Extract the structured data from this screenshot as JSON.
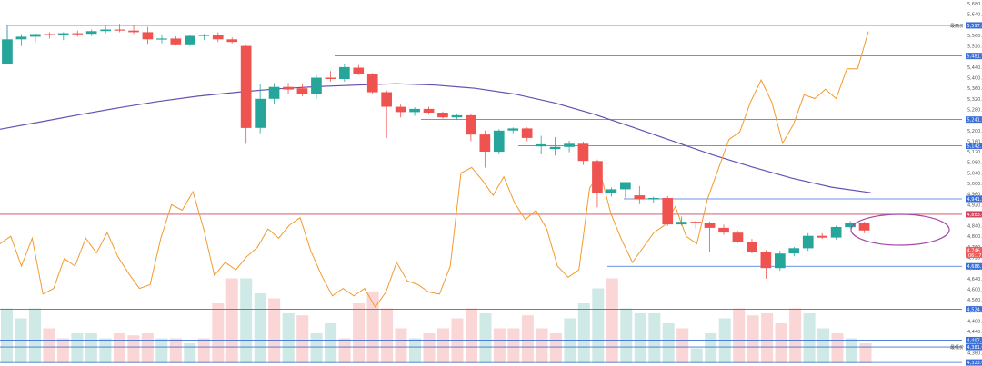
{
  "chart_data": {
    "type": "candlestick",
    "price_axis": {
      "ylim": [
        4320,
        5680
      ],
      "ticks": [
        "5,680.00",
        "5,640.00",
        "5,600.00",
        "5,560.00",
        "5,520.00",
        "5,480.00",
        "5,440.00",
        "5,400.00",
        "5,360.00",
        "5,320.00",
        "5,280.00",
        "5,240.00",
        "5,200.00",
        "5,160.00",
        "5,120.00",
        "5,080.00",
        "5,040.00",
        "5,000.00",
        "4,960.00",
        "4,920.00",
        "4,880.00",
        "4,840.00",
        "4,800.00",
        "4,760.00",
        "4,720.00",
        "4,680.00",
        "4,640.00",
        "4,600.00",
        "4,560.00",
        "4,520.00",
        "4,480.00",
        "4,440.00",
        "4,400.00",
        "4,360.00",
        "4,320.00"
      ]
    },
    "candles": [
      {
        "o": 5450,
        "h": 5580,
        "l": 5450,
        "c": 5545
      },
      {
        "o": 5545,
        "h": 5565,
        "l": 5520,
        "c": 5555
      },
      {
        "o": 5555,
        "h": 5568,
        "l": 5535,
        "c": 5565
      },
      {
        "o": 5565,
        "h": 5572,
        "l": 5548,
        "c": 5560
      },
      {
        "o": 5560,
        "h": 5572,
        "l": 5542,
        "c": 5568
      },
      {
        "o": 5568,
        "h": 5578,
        "l": 5555,
        "c": 5566
      },
      {
        "o": 5566,
        "h": 5582,
        "l": 5558,
        "c": 5576
      },
      {
        "o": 5576,
        "h": 5600,
        "l": 5568,
        "c": 5582
      },
      {
        "o": 5582,
        "h": 5604,
        "l": 5572,
        "c": 5578
      },
      {
        "o": 5578,
        "h": 5598,
        "l": 5566,
        "c": 5572
      },
      {
        "o": 5572,
        "h": 5592,
        "l": 5528,
        "c": 5545
      },
      {
        "o": 5545,
        "h": 5562,
        "l": 5530,
        "c": 5548
      },
      {
        "o": 5548,
        "h": 5556,
        "l": 5521,
        "c": 5526
      },
      {
        "o": 5526,
        "h": 5562,
        "l": 5520,
        "c": 5558
      },
      {
        "o": 5558,
        "h": 5566,
        "l": 5542,
        "c": 5562
      },
      {
        "o": 5562,
        "h": 5572,
        "l": 5535,
        "c": 5545
      },
      {
        "o": 5545,
        "h": 5552,
        "l": 5530,
        "c": 5535
      },
      {
        "o": 5520,
        "h": 5522,
        "l": 5150,
        "c": 5210
      },
      {
        "o": 5210,
        "h": 5375,
        "l": 5190,
        "c": 5320
      },
      {
        "o": 5320,
        "h": 5380,
        "l": 5300,
        "c": 5365
      },
      {
        "o": 5365,
        "h": 5380,
        "l": 5340,
        "c": 5355
      },
      {
        "o": 5360,
        "h": 5378,
        "l": 5330,
        "c": 5340
      },
      {
        "o": 5340,
        "h": 5410,
        "l": 5320,
        "c": 5400
      },
      {
        "o": 5400,
        "h": 5425,
        "l": 5385,
        "c": 5395
      },
      {
        "o": 5395,
        "h": 5450,
        "l": 5385,
        "c": 5440
      },
      {
        "o": 5438,
        "h": 5448,
        "l": 5410,
        "c": 5415
      },
      {
        "o": 5415,
        "h": 5418,
        "l": 5338,
        "c": 5345
      },
      {
        "o": 5345,
        "h": 5352,
        "l": 5172,
        "c": 5290
      },
      {
        "o": 5290,
        "h": 5298,
        "l": 5250,
        "c": 5270
      },
      {
        "o": 5270,
        "h": 5288,
        "l": 5256,
        "c": 5282
      },
      {
        "o": 5282,
        "h": 5290,
        "l": 5260,
        "c": 5268
      },
      {
        "o": 5268,
        "h": 5272,
        "l": 5245,
        "c": 5250
      },
      {
        "o": 5250,
        "h": 5262,
        "l": 5240,
        "c": 5258
      },
      {
        "o": 5258,
        "h": 5265,
        "l": 5160,
        "c": 5185
      },
      {
        "o": 5185,
        "h": 5200,
        "l": 5060,
        "c": 5120
      },
      {
        "o": 5120,
        "h": 5205,
        "l": 5110,
        "c": 5200
      },
      {
        "o": 5200,
        "h": 5212,
        "l": 5190,
        "c": 5208
      },
      {
        "o": 5208,
        "h": 5212,
        "l": 5160,
        "c": 5172
      },
      {
        "o": 5140,
        "h": 5180,
        "l": 5110,
        "c": 5148
      },
      {
        "o": 5130,
        "h": 5175,
        "l": 5105,
        "c": 5138
      },
      {
        "o": 5138,
        "h": 5162,
        "l": 5118,
        "c": 5150
      },
      {
        "o": 5150,
        "h": 5158,
        "l": 5070,
        "c": 5085
      },
      {
        "o": 5085,
        "h": 5090,
        "l": 4910,
        "c": 4965
      },
      {
        "o": 4965,
        "h": 4985,
        "l": 4950,
        "c": 4978
      },
      {
        "o": 4978,
        "h": 5000,
        "l": 4945,
        "c": 5005
      },
      {
        "o": 4955,
        "h": 4990,
        "l": 4922,
        "c": 4940
      },
      {
        "o": 4940,
        "h": 4950,
        "l": 4928,
        "c": 4945
      },
      {
        "o": 4945,
        "h": 4952,
        "l": 4840,
        "c": 4845
      },
      {
        "o": 4845,
        "h": 4875,
        "l": 4840,
        "c": 4855
      },
      {
        "o": 4855,
        "h": 4860,
        "l": 4830,
        "c": 4850
      },
      {
        "o": 4850,
        "h": 4856,
        "l": 4740,
        "c": 4832
      },
      {
        "o": 4832,
        "h": 4844,
        "l": 4806,
        "c": 4814
      },
      {
        "o": 4814,
        "h": 4820,
        "l": 4775,
        "c": 4778
      },
      {
        "o": 4778,
        "h": 4790,
        "l": 4735,
        "c": 4740
      },
      {
        "o": 4740,
        "h": 4748,
        "l": 4640,
        "c": 4680
      },
      {
        "o": 4680,
        "h": 4745,
        "l": 4670,
        "c": 4735
      },
      {
        "o": 4735,
        "h": 4760,
        "l": 4725,
        "c": 4755
      },
      {
        "o": 4755,
        "h": 4812,
        "l": 4745,
        "c": 4802
      },
      {
        "o": 4802,
        "h": 4812,
        "l": 4790,
        "c": 4795
      },
      {
        "o": 4795,
        "h": 4840,
        "l": 4788,
        "c": 4835
      },
      {
        "o": 4835,
        "h": 4858,
        "l": 4830,
        "c": 4852
      },
      {
        "o": 4852,
        "h": 4855,
        "l": 4812,
        "c": 4822
      }
    ],
    "moving_average": [
      5205,
      5232,
      5260,
      5286,
      5310,
      5330,
      5345,
      5358,
      5366,
      5372,
      5377,
      5372,
      5360,
      5338,
      5305,
      5262,
      5212,
      5160,
      5108,
      5062,
      5020,
      4986,
      4965
    ],
    "oscillator": [
      52,
      56,
      40,
      55,
      25,
      28,
      44,
      40,
      55,
      47,
      58,
      45,
      36,
      28,
      30,
      55,
      73,
      70,
      80,
      60,
      35,
      42,
      38,
      45,
      50,
      60,
      55,
      62,
      66,
      48,
      35,
      24,
      28,
      24,
      28,
      18,
      26,
      42,
      32,
      30,
      26,
      25,
      40,
      90,
      93,
      86,
      78,
      88,
      74,
      65,
      70,
      60,
      40,
      34,
      38,
      82,
      90,
      68,
      54,
      42,
      50,
      58,
      62,
      72,
      56,
      52,
      76,
      92,
      108,
      112,
      128,
      140,
      128,
      106,
      116,
      132,
      130,
      135,
      130,
      146,
      146,
      166
    ]
  },
  "price_lines": [
    {
      "label": "5,597.84",
      "value": 5597.84,
      "color": "#3b6fd6",
      "side_label": "最高价"
    },
    {
      "label": "5,481.97",
      "value": 5481.97,
      "color": "#3b6fd6"
    },
    {
      "label": "5,241.58",
      "value": 5241.58,
      "color": "#3b6fd6"
    },
    {
      "label": "5,142.17",
      "value": 5142.17,
      "color": "#3b6fd6"
    },
    {
      "label": "4,941.56",
      "value": 4941.56,
      "color": "#3b6fd6"
    },
    {
      "label": "4,883.49",
      "value": 4883.49,
      "color": "#d0455b"
    },
    {
      "label": "4,686.72",
      "value": 4686.72,
      "color": "#3b6fd6"
    },
    {
      "label": "4,524.12",
      "value": 4524.12,
      "color": "#3b6fd6"
    },
    {
      "label": "4,407.77",
      "value": 4407.77,
      "color": "#3b6fd6"
    },
    {
      "label": "4,381.65",
      "value": 4381.65,
      "color": "#3b6fd6",
      "side_label": "最低价"
    },
    {
      "label": "4,323.06",
      "value": 4323.06,
      "color": "#3b6fd6"
    }
  ],
  "current_price": {
    "label": "4,746.16",
    "sub_label": "06:17",
    "value": 4746.16,
    "color": "#f05a5a"
  },
  "colors": {
    "up": "#26a69a",
    "down": "#ef5350",
    "ma": "#6a4fb3",
    "oscillator": "#f39a2e",
    "ellipse": "#a24aa8",
    "volume_up": "#cfe9e6",
    "volume_down": "#fbd6d6"
  },
  "volumes": [
    {
      "v": 0.55,
      "up": true
    },
    {
      "v": 0.45,
      "up": true
    },
    {
      "v": 0.55,
      "up": true
    },
    {
      "v": 0.35,
      "up": false
    },
    {
      "v": 0.25,
      "up": false
    },
    {
      "v": 0.3,
      "up": true
    },
    {
      "v": 0.3,
      "up": true
    },
    {
      "v": 0.25,
      "up": true
    },
    {
      "v": 0.3,
      "up": false
    },
    {
      "v": 0.28,
      "up": false
    },
    {
      "v": 0.3,
      "up": false
    },
    {
      "v": 0.25,
      "up": true
    },
    {
      "v": 0.25,
      "up": false
    },
    {
      "v": 0.2,
      "up": true
    },
    {
      "v": 0.25,
      "up": false
    },
    {
      "v": 0.6,
      "up": false
    },
    {
      "v": 0.85,
      "up": false
    },
    {
      "v": 0.85,
      "up": true
    },
    {
      "v": 0.7,
      "up": true
    },
    {
      "v": 0.65,
      "up": false
    },
    {
      "v": 0.5,
      "up": true
    },
    {
      "v": 0.48,
      "up": false
    },
    {
      "v": 0.3,
      "up": true
    },
    {
      "v": 0.4,
      "up": true
    },
    {
      "v": 0.25,
      "up": false
    },
    {
      "v": 0.6,
      "up": false
    },
    {
      "v": 0.72,
      "up": false
    },
    {
      "v": 0.55,
      "up": false
    },
    {
      "v": 0.35,
      "up": false
    },
    {
      "v": 0.25,
      "up": true
    },
    {
      "v": 0.3,
      "up": false
    },
    {
      "v": 0.35,
      "up": false
    },
    {
      "v": 0.45,
      "up": false
    },
    {
      "v": 0.55,
      "up": false
    },
    {
      "v": 0.5,
      "up": true
    },
    {
      "v": 0.35,
      "up": false
    },
    {
      "v": 0.35,
      "up": false
    },
    {
      "v": 0.48,
      "up": false
    },
    {
      "v": 0.35,
      "up": false
    },
    {
      "v": 0.3,
      "up": false
    },
    {
      "v": 0.45,
      "up": true
    },
    {
      "v": 0.6,
      "up": true
    },
    {
      "v": 0.75,
      "up": true
    },
    {
      "v": 0.85,
      "up": false
    },
    {
      "v": 0.55,
      "up": true
    },
    {
      "v": 0.5,
      "up": true
    },
    {
      "v": 0.5,
      "up": true
    },
    {
      "v": 0.4,
      "up": true
    },
    {
      "v": 0.35,
      "up": false
    },
    {
      "v": 0.15,
      "up": true
    },
    {
      "v": 0.3,
      "up": true
    },
    {
      "v": 0.45,
      "up": true
    },
    {
      "v": 0.55,
      "up": false
    },
    {
      "v": 0.48,
      "up": false
    },
    {
      "v": 0.5,
      "up": false
    },
    {
      "v": 0.4,
      "up": false
    },
    {
      "v": 0.55,
      "up": false
    },
    {
      "v": 0.5,
      "up": true
    },
    {
      "v": 0.35,
      "up": true
    },
    {
      "v": 0.3,
      "up": false
    },
    {
      "v": 0.25,
      "up": true
    },
    {
      "v": 0.2,
      "up": false
    }
  ]
}
